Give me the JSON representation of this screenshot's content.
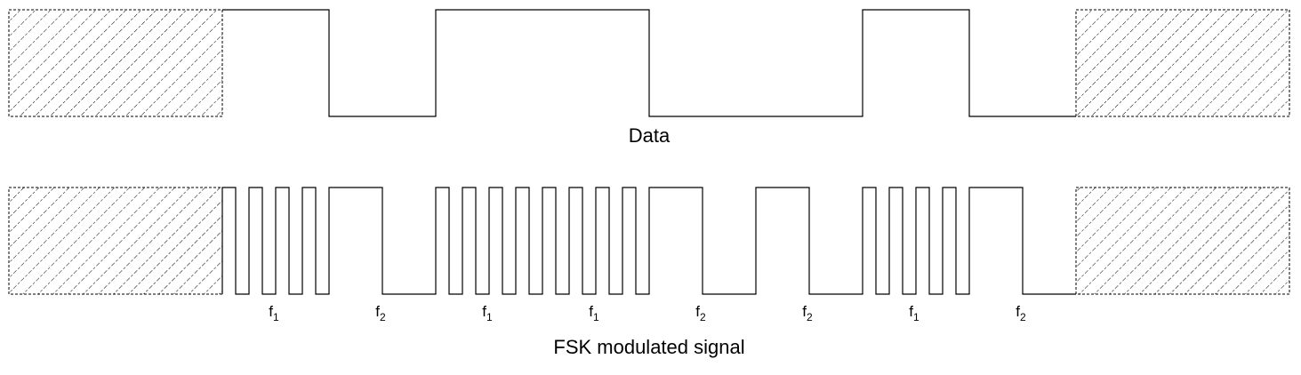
{
  "data_caption": "Data",
  "signal_caption": "FSK modulated signal",
  "bits": [
    1,
    0,
    1,
    1,
    0,
    0,
    1,
    0
  ],
  "frequency_labels": [
    {
      "letter": "f",
      "sub": "1"
    },
    {
      "letter": "f",
      "sub": "2"
    },
    {
      "letter": "f",
      "sub": "1"
    },
    {
      "letter": "f",
      "sub": "1"
    },
    {
      "letter": "f",
      "sub": "2"
    },
    {
      "letter": "f",
      "sub": "2"
    },
    {
      "letter": "f",
      "sub": "1"
    },
    {
      "letter": "f",
      "sub": "2"
    }
  ],
  "cycles_per_bit": {
    "1": 4,
    "0": 1
  },
  "colors": {
    "line": "#000000",
    "background": "#ffffff"
  }
}
